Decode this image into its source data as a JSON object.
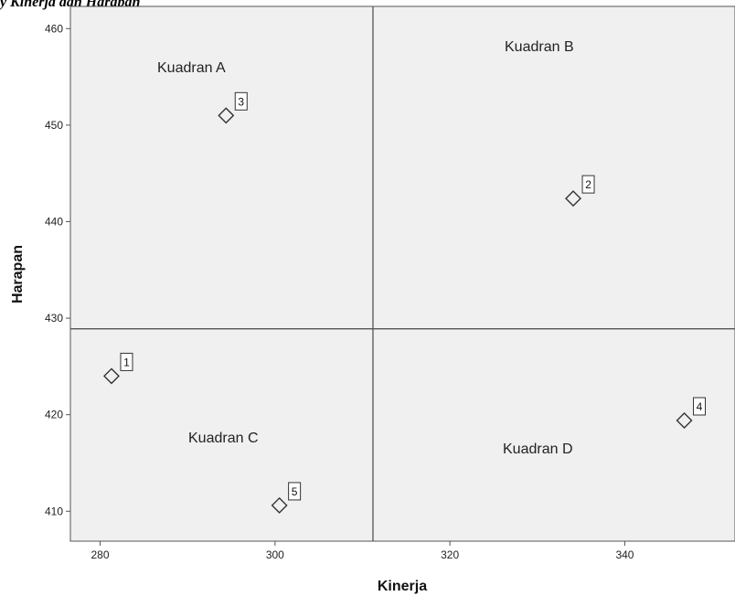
{
  "caption": "y Kinerja dan Harapan",
  "chart_data": {
    "type": "scatter",
    "xlabel": "Kinerja",
    "ylabel": "Harapan",
    "xlim": [
      276.6,
      352.6
    ],
    "ylim": [
      406.9,
      462.3
    ],
    "x_ticks": [
      280,
      300,
      320,
      340
    ],
    "y_ticks": [
      410,
      420,
      430,
      440,
      450,
      460
    ],
    "reference_lines": {
      "x": 311.2,
      "y": 428.9
    },
    "quadrant_labels": [
      "Kuadran A",
      "Kuadran B",
      "Kuadran C",
      "Kuadran D"
    ],
    "points": [
      {
        "label": "1",
        "x": 281.3,
        "y": 424.0
      },
      {
        "label": "2",
        "x": 334.1,
        "y": 442.4
      },
      {
        "label": "3",
        "x": 294.4,
        "y": 451.0
      },
      {
        "label": "4",
        "x": 346.8,
        "y": 419.4
      },
      {
        "label": "5",
        "x": 300.5,
        "y": 410.6
      }
    ],
    "marker": "diamond",
    "grid": false,
    "legend": "none",
    "colors": {
      "plot_background": "#f0f0f0",
      "frame": "#555555",
      "marker_stroke": "#333333"
    }
  }
}
